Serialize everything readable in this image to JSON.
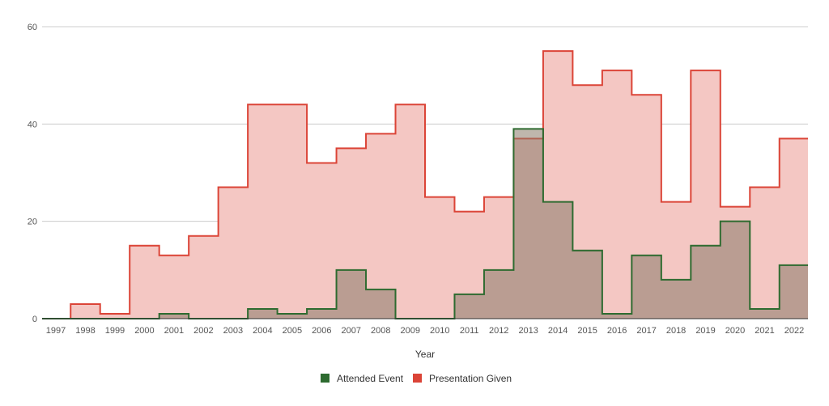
{
  "chart_data": {
    "type": "area",
    "step": true,
    "xlabel": "Year",
    "ylabel": "",
    "ylim": [
      0,
      60
    ],
    "yticks": [
      0,
      20,
      40,
      60
    ],
    "grid": true,
    "legend_position": "bottom",
    "categories": [
      "1997",
      "1998",
      "1999",
      "2000",
      "2001",
      "2002",
      "2003",
      "2004",
      "2005",
      "2006",
      "2007",
      "2008",
      "2009",
      "2010",
      "2011",
      "2012",
      "2013",
      "2014",
      "2015",
      "2016",
      "2017",
      "2018",
      "2019",
      "2020",
      "2021",
      "2022"
    ],
    "series": [
      {
        "name": "Presentation Given",
        "color": "#db4437",
        "fill": "#f4c7c3",
        "values": [
          0,
          3,
          1,
          15,
          13,
          17,
          27,
          44,
          44,
          32,
          35,
          38,
          44,
          25,
          22,
          25,
          37,
          55,
          48,
          51,
          46,
          24,
          51,
          23,
          27,
          37
        ]
      },
      {
        "name": "Attended Event",
        "color": "#2e6b30",
        "fill": "#8a7a6a",
        "values": [
          0,
          0,
          0,
          0,
          1,
          0,
          0,
          2,
          1,
          2,
          10,
          6,
          0,
          0,
          5,
          10,
          39,
          24,
          14,
          1,
          13,
          8,
          15,
          20,
          2,
          11
        ]
      }
    ],
    "legend": [
      {
        "name": "Attended Event",
        "color": "#2e6b30"
      },
      {
        "name": "Presentation Given",
        "color": "#db4437"
      }
    ]
  }
}
